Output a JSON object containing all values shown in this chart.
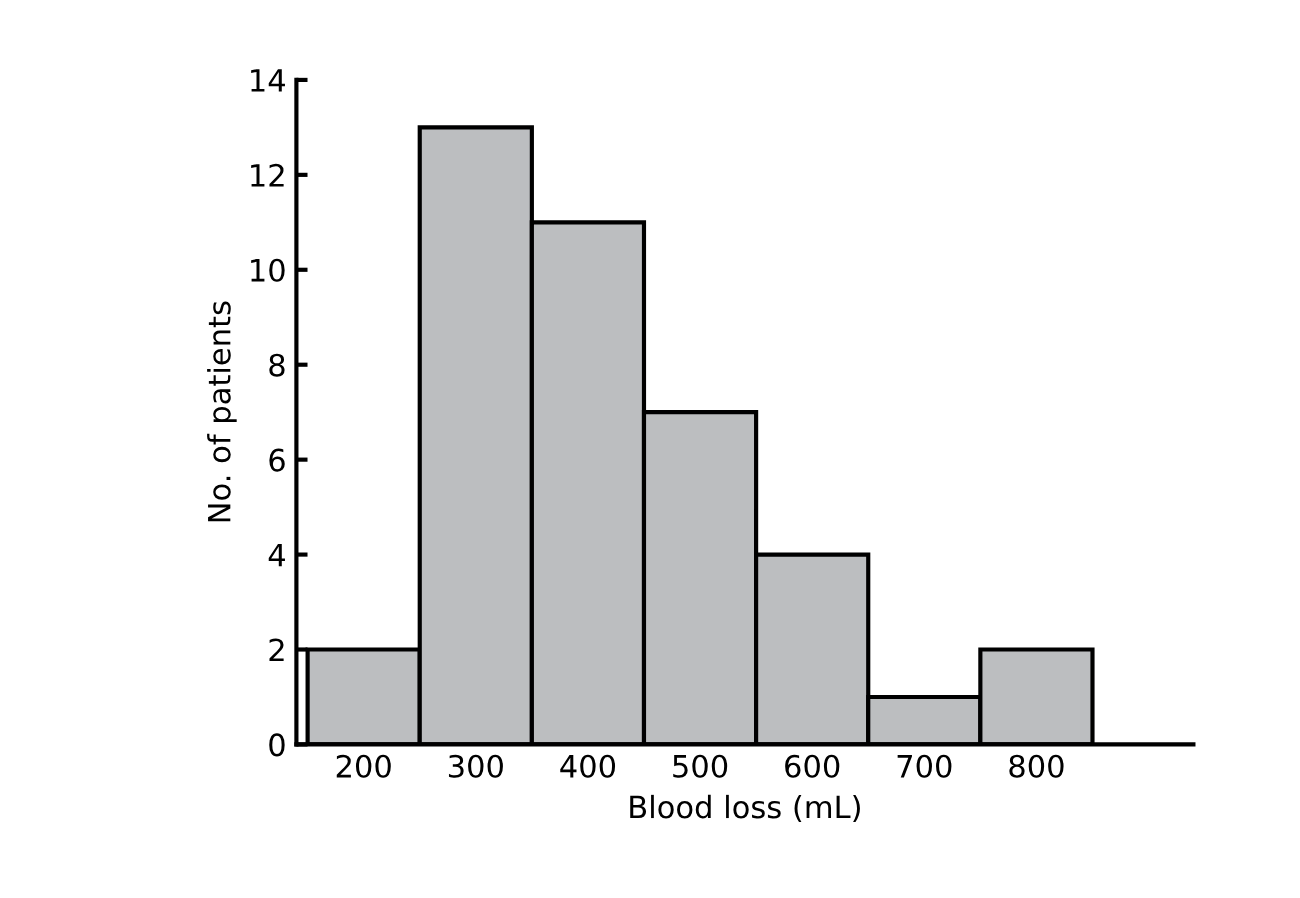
{
  "chart_data": {
    "type": "bar",
    "xlabel": "Blood loss (mL)",
    "ylabel": "No. of patients",
    "categories": [
      "200",
      "300",
      "400",
      "500",
      "600",
      "700",
      "800"
    ],
    "values": [
      2,
      13,
      11,
      7,
      4,
      1,
      2
    ],
    "color": "#bcbec0",
    "ylim": [
      0,
      14
    ],
    "yticks": [
      0,
      2,
      4,
      6,
      8,
      10,
      12,
      14
    ],
    "grid": false,
    "legend": false
  }
}
